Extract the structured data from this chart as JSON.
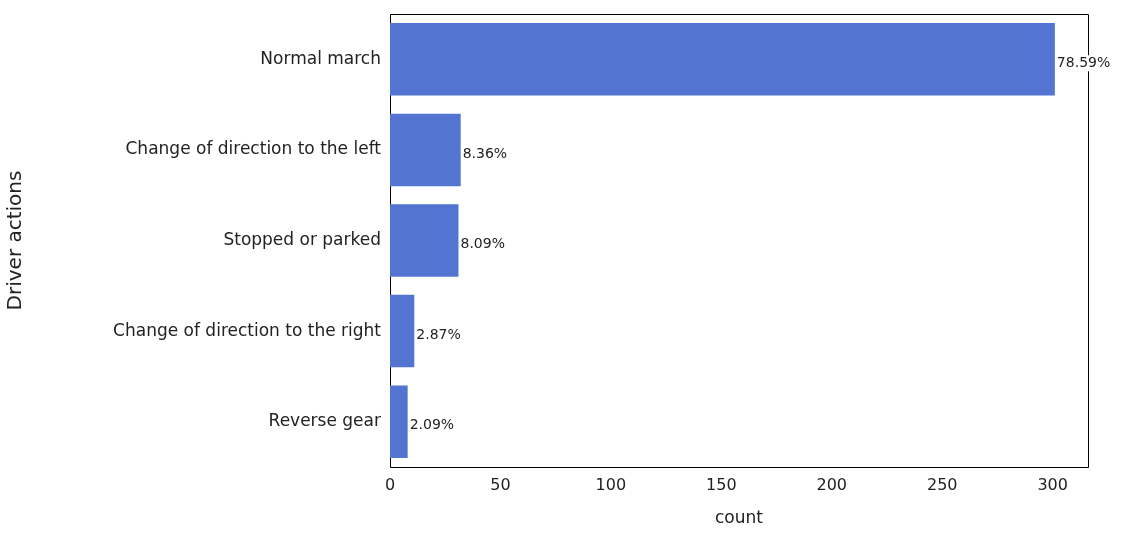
{
  "chart_data": {
    "type": "bar",
    "orientation": "horizontal",
    "xlabel": "count",
    "ylabel": "Driver actions",
    "categories": [
      "Normal march",
      "Change of direction to the left",
      "Stopped or parked",
      "Change of direction to the right",
      "Reverse gear"
    ],
    "values": [
      301,
      32,
      31,
      11,
      8
    ],
    "annotations": [
      {
        "text": "78.59%",
        "x": 301,
        "y": "Normal march"
      },
      {
        "text": "8.36%",
        "x": 32,
        "y": "Change of direction to the left"
      },
      {
        "text": "8.09%",
        "x": 31,
        "y": "Stopped or parked"
      },
      {
        "text": "2.87%",
        "x": 11,
        "y": "Change of direction to the right"
      },
      {
        "text": "2.09%",
        "x": 8,
        "y": "Reverse gear"
      }
    ],
    "color": "#5375d1",
    "xlim": [
      0,
      316
    ],
    "xticks": [
      0,
      50,
      100,
      150,
      200,
      250,
      300
    ],
    "grid": false,
    "legend": false
  }
}
